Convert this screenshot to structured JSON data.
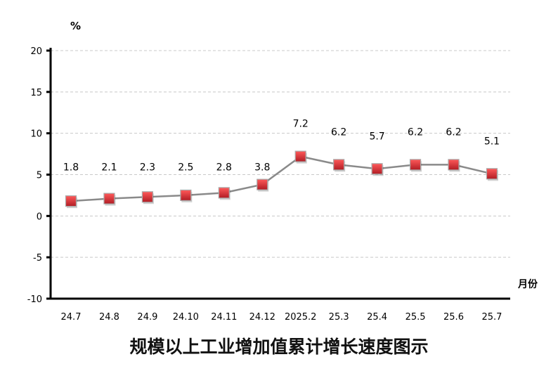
{
  "chart_data": {
    "type": "line",
    "title": "规模以上工业增加值累计增长速度图示",
    "ylabel": "%",
    "xlabel": "月份",
    "categories": [
      "24.7",
      "24.8",
      "24.9",
      "24.10",
      "24.11",
      "24.12",
      "2025.2",
      "25.3",
      "25.4",
      "25.5",
      "25.6",
      "25.7"
    ],
    "values": [
      1.8,
      2.1,
      2.3,
      2.5,
      2.8,
      3.8,
      7.2,
      6.2,
      5.7,
      6.2,
      6.2,
      5.1
    ],
    "data_labels": [
      "1.8",
      "2.1",
      "2.3",
      "2.5",
      "2.8",
      "3.8",
      "7.2",
      "6.2",
      "5.7",
      "6.2",
      "6.2",
      "5.1"
    ],
    "yticks": [
      "20",
      "15",
      "10",
      "5",
      "0",
      "-5",
      "-10"
    ],
    "ylim": [
      -10,
      20
    ],
    "grid": true,
    "colors": {
      "line": "#8a8a8a",
      "marker": "#e0303a",
      "grid": "#c8c8c8"
    }
  }
}
